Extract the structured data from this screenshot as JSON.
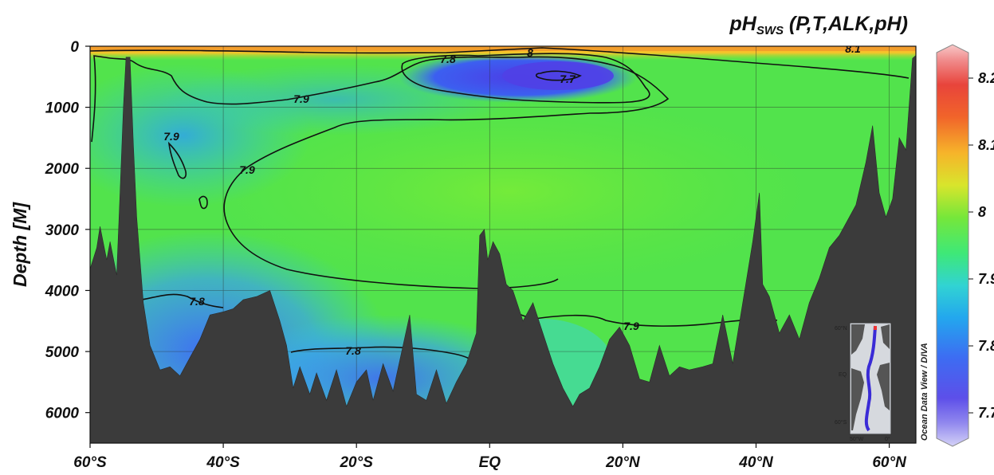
{
  "chart_data": {
    "type": "heatmap",
    "title_base": "pH",
    "title_sub": "SWS",
    "title_rest": " (P,T,ALK,pH)",
    "ylabel": "Depth [M]",
    "xlabel": "",
    "x_ticks": [
      "60°S",
      "40°S",
      "20°S",
      "EQ",
      "20°N",
      "40°N",
      "60°N"
    ],
    "x_tick_values": [
      -60,
      -40,
      -20,
      0,
      20,
      40,
      60
    ],
    "xlim": [
      -60,
      64
    ],
    "y_ticks": [
      "0",
      "1000",
      "2000",
      "3000",
      "4000",
      "5000",
      "6000"
    ],
    "y_tick_values": [
      0,
      1000,
      2000,
      3000,
      4000,
      5000,
      6000
    ],
    "ylim": [
      0,
      6500
    ],
    "y_inverted": true,
    "grid": true,
    "colorbar": {
      "ticks": [
        "8.2",
        "8.1",
        "8",
        "7.9",
        "7.8",
        "7.7"
      ],
      "tick_values": [
        8.2,
        8.1,
        8.0,
        7.9,
        7.8,
        7.7
      ],
      "range": [
        7.65,
        8.25
      ],
      "colors": [
        "#c0bdf5",
        "#6a55e8",
        "#3d6cf2",
        "#23a7ee",
        "#34d8c9",
        "#3ee878",
        "#7be73a",
        "#d8e52c",
        "#f6b42a",
        "#f1642a",
        "#e8443b",
        "#f5b6b6"
      ]
    },
    "contour_labels": [
      "7.8",
      "8",
      "8.1",
      "7.7",
      "7.9",
      "7.9",
      "7.9",
      "7.8",
      "7.8",
      "7.9"
    ],
    "credit": "Ocean Data View / DIVA",
    "inset_map": {
      "lat_labels": [
        "60°N",
        "EQ",
        "60°S"
      ],
      "lon_labels": [
        "50°W",
        "0°"
      ]
    },
    "seafloor_depth": [
      [
        -60,
        3650
      ],
      [
        -59,
        3300
      ],
      [
        -58.5,
        2950
      ],
      [
        -57.5,
        3500
      ],
      [
        -57,
        3200
      ],
      [
        -56,
        3750
      ],
      [
        -55.5,
        2400
      ],
      [
        -55,
        1000
      ],
      [
        -54.6,
        180
      ],
      [
        -54,
        180
      ],
      [
        -53.5,
        1600
      ],
      [
        -53,
        2800
      ],
      [
        -52,
        4200
      ],
      [
        -51,
        4900
      ],
      [
        -49.5,
        5300
      ],
      [
        -48,
        5250
      ],
      [
        -46.5,
        5400
      ],
      [
        -45,
        5100
      ],
      [
        -43.5,
        4800
      ],
      [
        -42,
        4400
      ],
      [
        -40,
        4350
      ],
      [
        -38.5,
        4300
      ],
      [
        -37,
        4150
      ],
      [
        -35,
        4100
      ],
      [
        -33,
        4000
      ],
      [
        -31.5,
        4500
      ],
      [
        -30.5,
        4900
      ],
      [
        -29.5,
        5600
      ],
      [
        -28.5,
        5250
      ],
      [
        -27,
        5700
      ],
      [
        -26,
        5350
      ],
      [
        -24.5,
        5800
      ],
      [
        -23,
        5300
      ],
      [
        -21.5,
        5900
      ],
      [
        -20,
        5500
      ],
      [
        -18.5,
        5300
      ],
      [
        -17.5,
        5800
      ],
      [
        -16,
        5200
      ],
      [
        -14.5,
        5650
      ],
      [
        -12,
        4400
      ],
      [
        -11,
        5700
      ],
      [
        -9.5,
        5800
      ],
      [
        -8,
        5300
      ],
      [
        -6.5,
        5850
      ],
      [
        -5,
        5500
      ],
      [
        -3.5,
        5200
      ],
      [
        -2,
        4700
      ],
      [
        -1.5,
        3100
      ],
      [
        -0.8,
        3000
      ],
      [
        -0.3,
        3500
      ],
      [
        0.5,
        3200
      ],
      [
        1.5,
        3400
      ],
      [
        2.5,
        3900
      ],
      [
        3.5,
        4000
      ],
      [
        5,
        4500
      ],
      [
        6.5,
        4200
      ],
      [
        8,
        4700
      ],
      [
        9.5,
        5200
      ],
      [
        11,
        5600
      ],
      [
        12.5,
        5900
      ],
      [
        13.5,
        5700
      ],
      [
        15,
        5600
      ],
      [
        16.5,
        5250
      ],
      [
        18,
        4800
      ],
      [
        19.5,
        4600
      ],
      [
        21,
        4900
      ],
      [
        22.5,
        5450
      ],
      [
        24,
        5500
      ],
      [
        25.5,
        4900
      ],
      [
        27,
        5400
      ],
      [
        28.5,
        5250
      ],
      [
        30,
        5300
      ],
      [
        32,
        5250
      ],
      [
        33.5,
        5200
      ],
      [
        35,
        4400
      ],
      [
        36.5,
        5200
      ],
      [
        38,
        4200
      ],
      [
        39.5,
        3200
      ],
      [
        40.5,
        2400
      ],
      [
        41,
        3900
      ],
      [
        42,
        4100
      ],
      [
        43.5,
        4700
      ],
      [
        45,
        4400
      ],
      [
        46.5,
        4800
      ],
      [
        48,
        4200
      ],
      [
        49.5,
        3800
      ],
      [
        51,
        3300
      ],
      [
        52.5,
        3100
      ],
      [
        53.5,
        2900
      ],
      [
        55,
        2600
      ],
      [
        56.5,
        1900
      ],
      [
        57.5,
        1300
      ],
      [
        58.5,
        2400
      ],
      [
        59.5,
        2800
      ],
      [
        60.5,
        2500
      ],
      [
        61.5,
        1500
      ],
      [
        62.5,
        1700
      ],
      [
        63.5,
        200
      ],
      [
        64,
        150
      ]
    ]
  }
}
